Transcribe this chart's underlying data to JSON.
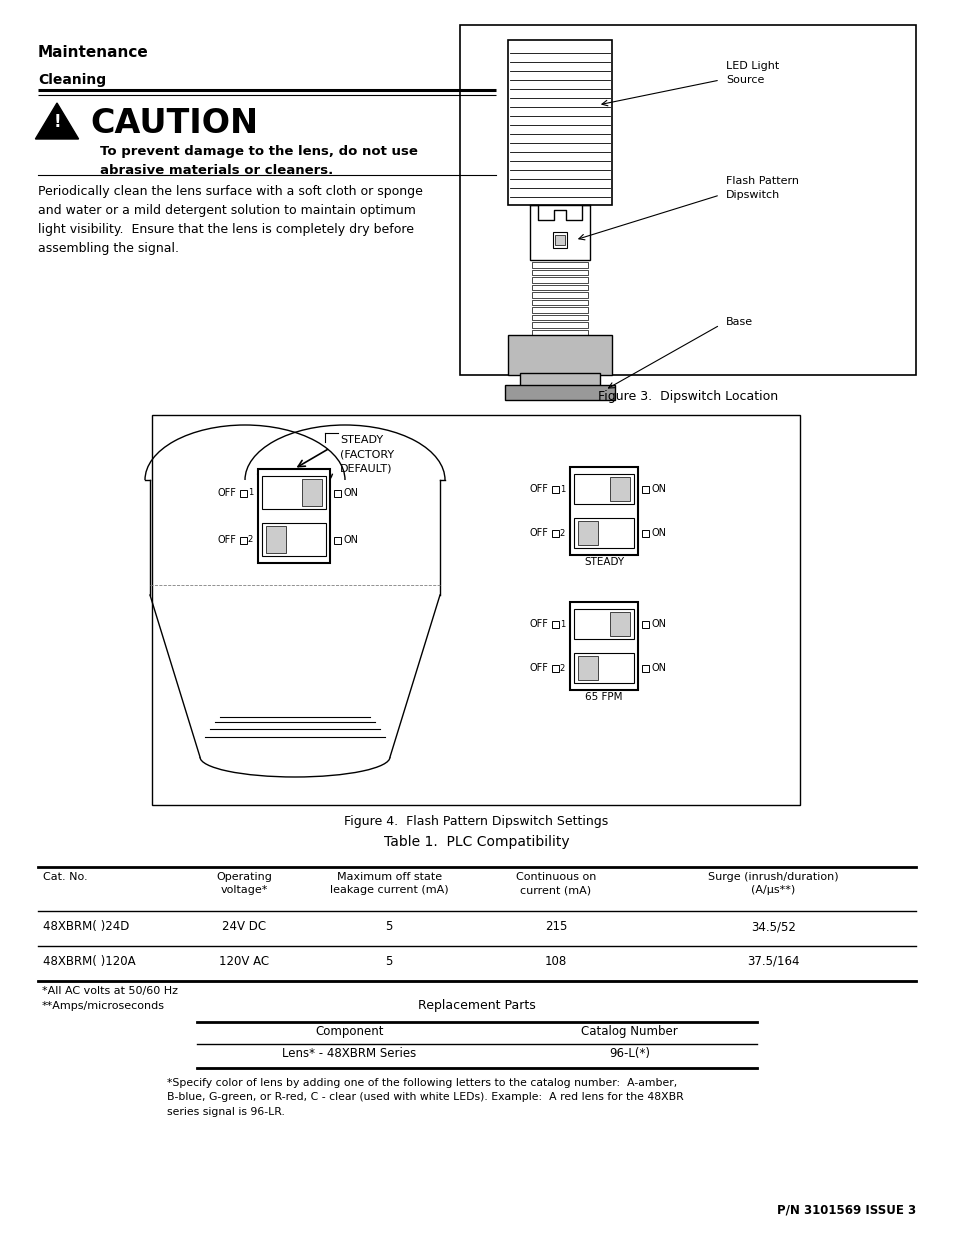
{
  "bg_color": "#ffffff",
  "section_title": "Maintenance",
  "subsection_title": "Cleaning",
  "caution_title": "CAUTION",
  "caution_body": "To prevent damage to the lens, do not use\nabrasive materials or cleaners.",
  "body_text": "Periodically clean the lens surface with a soft cloth or sponge\nand water or a mild detergent solution to maintain optimum\nlight visibility.  Ensure that the lens is completely dry before\nassembling the signal.",
  "fig3_caption": "Figure 3.  Dipswitch Location",
  "fig4_caption": "Figure 4.  Flash Pattern Dipswitch Settings",
  "table1_title": "Table 1.  PLC Compatibility",
  "table1_headers": [
    "Cat. No.",
    "Operating\nvoltage*",
    "Maximum off state\nleakage current (mA)",
    "Continuous on\ncurrent (mA)",
    "Surge (inrush/duration)\n(A/μs**)"
  ],
  "table1_rows": [
    [
      "48XBRM( )24D",
      "24V DC",
      "5",
      "215",
      "34.5/52"
    ],
    [
      "48XBRM( )120A",
      "120V AC",
      "5",
      "108",
      "37.5/164"
    ]
  ],
  "table1_notes": [
    "*All AC volts at 50/60 Hz",
    "**Amps/microseconds"
  ],
  "table2_title": "Replacement Parts",
  "table2_headers": [
    "Component",
    "Catalog Number"
  ],
  "table2_rows": [
    [
      "Lens* - 48XBRM Series",
      "96-L(*)"
    ]
  ],
  "table2_note": "*Specify color of lens by adding one of the following letters to the catalog number:  A-amber,\nB-blue, G-green, or R-red, C - clear (used with white LEDs). Example:  A red lens for the 48XBR\nseries signal is 96-LR.",
  "footer_text": "P/N 3101569 ISSUE 3",
  "fig3_labels": [
    "LED Light\nSource",
    "Flash Pattern\nDipswitch",
    "Base"
  ],
  "steady_label": "STEADY\n(FACTORY\nDEFAULT)",
  "steady_caption": "STEADY",
  "fpm_caption": "65 FPM"
}
